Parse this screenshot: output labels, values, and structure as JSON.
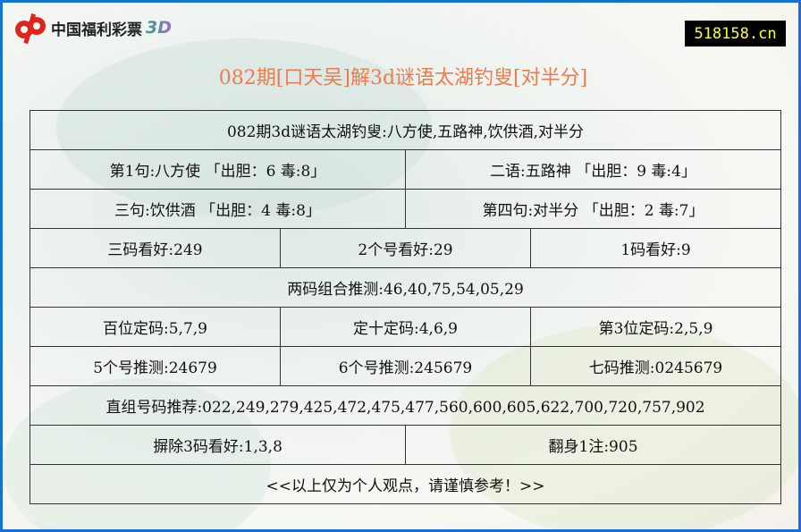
{
  "logo": {
    "text": "中国福利彩票",
    "suffix": "3D"
  },
  "site": "518158.cn",
  "title": "082期[口天吴]解3d谜语太湖钓叟[对半分]",
  "rows": {
    "r1": "082期3d谜语太湖钓叟:八方使,五路神,饮供酒,对半分",
    "r2a": "第1句:八方使 「出胆：6 毒:8」",
    "r2b": "二语:五路神 「出胆：9 毒:4」",
    "r3a": "三句:饮供酒 「出胆：4 毒:8」",
    "r3b": "第四句:对半分 「出胆：2 毒:7」",
    "r4a": "三码看好:249",
    "r4b": "2个号看好:29",
    "r4c": "1码看好:9",
    "r5": "两码组合推测:46,40,75,54,05,29",
    "r6a": "百位定码:5,7,9",
    "r6b": "定十定码:4,6,9",
    "r6c": "第3位定码:2,5,9",
    "r7a": "5个号推测:24679",
    "r7b": "6个号推测:245679",
    "r7c": "七码推测:0245679",
    "r8": "直组号码推荐:022,249,279,425,472,475,477,560,600,605,622,700,720,757,902",
    "r9a": "摒除3码看好:1,3,8",
    "r9b": "翻身1注:905",
    "r10": "<<以上仅为个人观点，请谨慎参考！>>"
  },
  "colors": {
    "frame": "#1a6fd6",
    "title": "#ef7b4d",
    "site_bg": "#000000",
    "site_text": "#ffff33"
  }
}
